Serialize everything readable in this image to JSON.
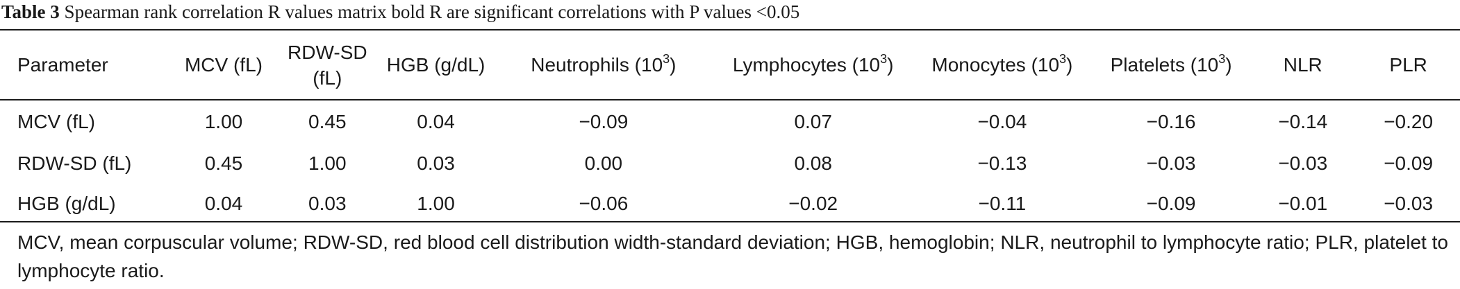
{
  "caption": {
    "number": "Table 3",
    "text": "Spearman rank correlation R values matrix bold R are significant correlations with P values <0.05"
  },
  "table": {
    "headers": [
      {
        "label": "Parameter",
        "sup": ""
      },
      {
        "label": "MCV (fL)",
        "sup": ""
      },
      {
        "label": "RDW-SD (fL)",
        "sup": ""
      },
      {
        "label": "HGB (g/dL)",
        "sup": ""
      },
      {
        "label": "Neutrophils (10",
        "sup": "3",
        "close": ")"
      },
      {
        "label": "Lymphocytes (10",
        "sup": "3",
        "close": ")"
      },
      {
        "label": "Monocytes (10",
        "sup": "3",
        "close": ")"
      },
      {
        "label": "Platelets (10",
        "sup": "3",
        "close": ")"
      },
      {
        "label": "NLR",
        "sup": ""
      },
      {
        "label": "PLR",
        "sup": ""
      }
    ],
    "rows": [
      [
        "MCV (fL)",
        "1.00",
        "0.45",
        "0.04",
        "−0.09",
        "0.07",
        "−0.04",
        "−0.16",
        "−0.14",
        "−0.20"
      ],
      [
        "RDW-SD (fL)",
        "0.45",
        "1.00",
        "0.03",
        "0.00",
        "0.08",
        "−0.13",
        "−0.03",
        "−0.03",
        "−0.09"
      ],
      [
        "HGB (g/dL)",
        "0.04",
        "0.03",
        "1.00",
        "−0.06",
        "−0.02",
        "−0.11",
        "−0.09",
        "−0.01",
        "−0.03"
      ]
    ]
  },
  "footnote": "MCV, mean corpuscular volume; RDW-SD, red blood cell distribution width-standard deviation; HGB, hemoglobin; NLR, neutrophil to lymphocyte ratio; PLR, platelet to lymphocyte ratio."
}
